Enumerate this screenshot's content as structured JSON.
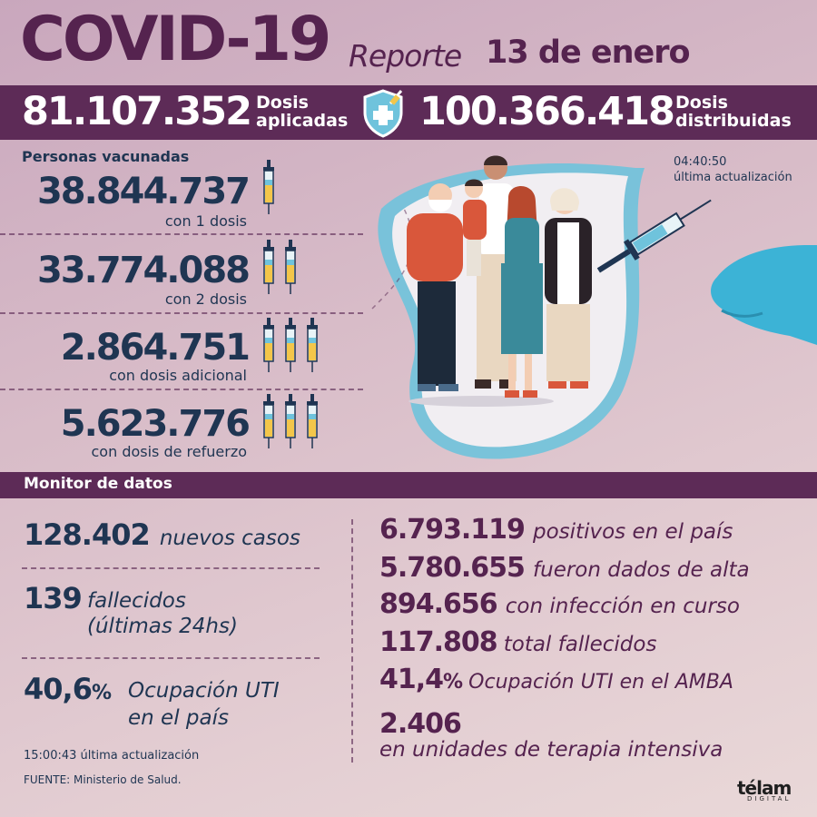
{
  "header": {
    "title": "COVID-19",
    "report_label": "Reporte",
    "report_date": "13 de enero"
  },
  "doses": {
    "applied_value": "81.107.352",
    "applied_label_1": "Dosis",
    "applied_label_2": "aplicadas",
    "distributed_value": "100.366.418",
    "distributed_label_1": "Dosis",
    "distributed_label_2": "distribuidas"
  },
  "vaccinated": {
    "section_label": "Personas vacunadas",
    "update_time": "04:40:50",
    "update_label": "última actualización",
    "rows": [
      {
        "value": "38.844.737",
        "label": "con 1 dosis",
        "syringes": 1
      },
      {
        "value": "33.774.088",
        "label": "con 2 dosis",
        "syringes": 2
      },
      {
        "value": "2.864.751",
        "label": "con dosis adicional",
        "syringes": 3
      },
      {
        "value": "5.623.776",
        "label": "con dosis de refuerzo",
        "syringes": 3
      }
    ]
  },
  "monitor": {
    "title": "Monitor de datos",
    "left": {
      "new_cases_value": "128.402",
      "new_cases_label": "nuevos casos",
      "deaths_value": "139",
      "deaths_label_1": "fallecidos",
      "deaths_label_2": "(últimas 24hs)",
      "icu_value": "40,6",
      "icu_pct": "%",
      "icu_label_1": "Ocupación UTI",
      "icu_label_2": "en el país",
      "update_time": "15:00:43",
      "update_label": "última actualización"
    },
    "right": {
      "positives_value": "6.793.119",
      "positives_label": "positivos en el país",
      "discharged_value": "5.780.655",
      "discharged_label": "fueron dados de alta",
      "active_value": "894.656",
      "active_label": "con infección en curso",
      "total_deaths_value": "117.808",
      "total_deaths_label": "total fallecidos",
      "amba_icu_value": "41,4",
      "amba_icu_pct": "%",
      "amba_icu_label": "Ocupación UTI en el AMBA",
      "icu_units_value": "2.406",
      "icu_units_label": "en unidades de terapia intensiva"
    }
  },
  "footer": {
    "source": "FUENTE: Ministerio de Salud.",
    "brand": "télam",
    "brand_sub": "DIGITAL"
  },
  "colors": {
    "plum": "#5d2b57",
    "navy": "#1f3552",
    "accent_blue": "#6fc3dc",
    "vaccine_yellow": "#f3c64a"
  }
}
